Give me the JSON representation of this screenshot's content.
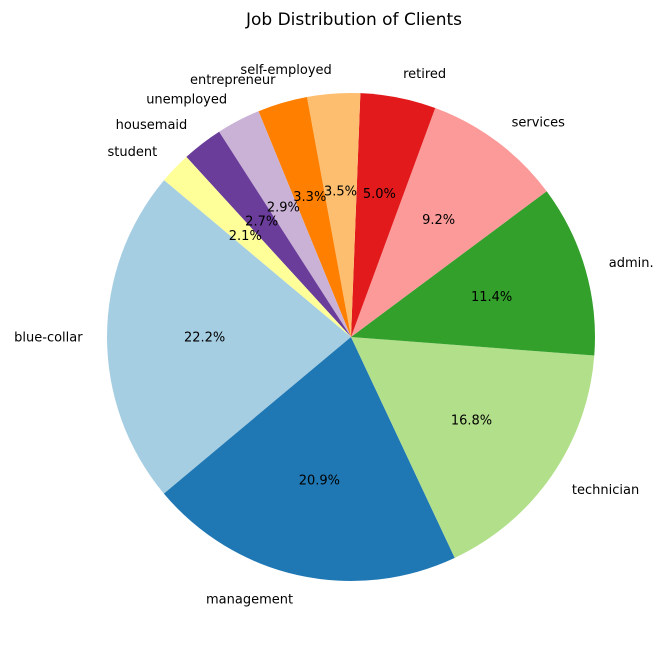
{
  "chart_data": {
    "type": "pie",
    "title": "Job Distribution of Clients",
    "start_angle": 140,
    "direction": "counterclockwise",
    "categories": [
      "blue-collar",
      "management",
      "technician",
      "admin.",
      "services",
      "retired",
      "self-employed",
      "entrepreneur",
      "unemployed",
      "housemaid",
      "student"
    ],
    "values": [
      22.2,
      20.9,
      16.8,
      11.4,
      9.2,
      5.0,
      3.5,
      3.3,
      2.9,
      2.7,
      2.1
    ],
    "value_labels": [
      "22.2%",
      "20.9%",
      "16.8%",
      "11.4%",
      "9.2%",
      "5.0%",
      "3.5%",
      "3.3%",
      "2.9%",
      "2.7%",
      "2.1%"
    ],
    "colors": [
      "#a6cee3",
      "#1f78b4",
      "#b2df8a",
      "#33a02c",
      "#fb9a99",
      "#e31a1c",
      "#fdbf6f",
      "#ff7f00",
      "#cab2d6",
      "#6a3d9a",
      "#ffff99"
    ],
    "legend": false
  }
}
